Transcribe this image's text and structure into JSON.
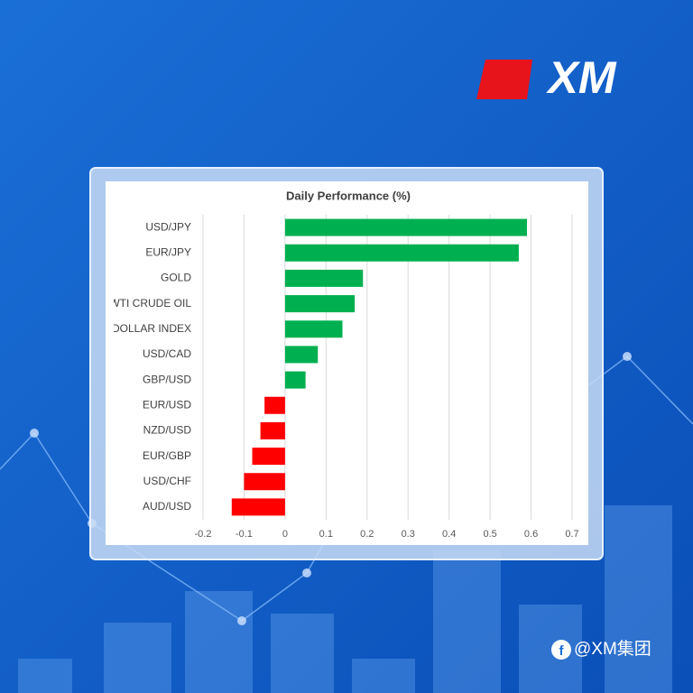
{
  "brand": {
    "logo": "XM",
    "watermark": "@XM集团"
  },
  "chart_data": {
    "type": "bar",
    "orientation": "horizontal",
    "title": "Daily Performance (%)",
    "categories": [
      "USD/JPY",
      "EUR/JPY",
      "GOLD",
      "WTI CRUDE OIL",
      "DOLLAR INDEX",
      "USD/CAD",
      "GBP/USD",
      "EUR/USD",
      "NZD/USD",
      "EUR/GBP",
      "USD/CHF",
      "AUD/USD"
    ],
    "values": [
      0.59,
      0.57,
      0.19,
      0.17,
      0.14,
      0.08,
      0.05,
      -0.05,
      -0.06,
      -0.08,
      -0.1,
      -0.13
    ],
    "positive_color": "#00b050",
    "negative_color": "#ff0000",
    "xlim": [
      -0.2,
      0.7
    ],
    "xticks": [
      -0.2,
      -0.1,
      0,
      0.1,
      0.2,
      0.3,
      0.4,
      0.5,
      0.6,
      0.7
    ],
    "grid": true
  }
}
